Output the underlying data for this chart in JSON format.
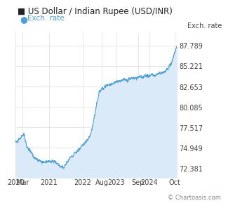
{
  "title": "US Dollar / Indian Rupee (USD/INR)",
  "legend_label": "Exch. rate",
  "right_ylabel": "Exch. rate",
  "copyright": "© Chartoasis.com",
  "line_color": "#4d9fda",
  "fill_color": "#daeaf8",
  "background_color": "#ffffff",
  "yticks": [
    72.381,
    74.949,
    77.517,
    80.085,
    82.653,
    85.221,
    87.789
  ],
  "xtick_labels": [
    "2020",
    "Mar",
    "2021",
    "2022",
    "Aug",
    "2023",
    "Sep",
    "2024",
    "Oct"
  ],
  "ylim": [
    71.2,
    89.5
  ],
  "title_fontsize": 8.5,
  "legend_fontsize": 7.5,
  "tick_fontsize": 7,
  "copyright_fontsize": 6
}
